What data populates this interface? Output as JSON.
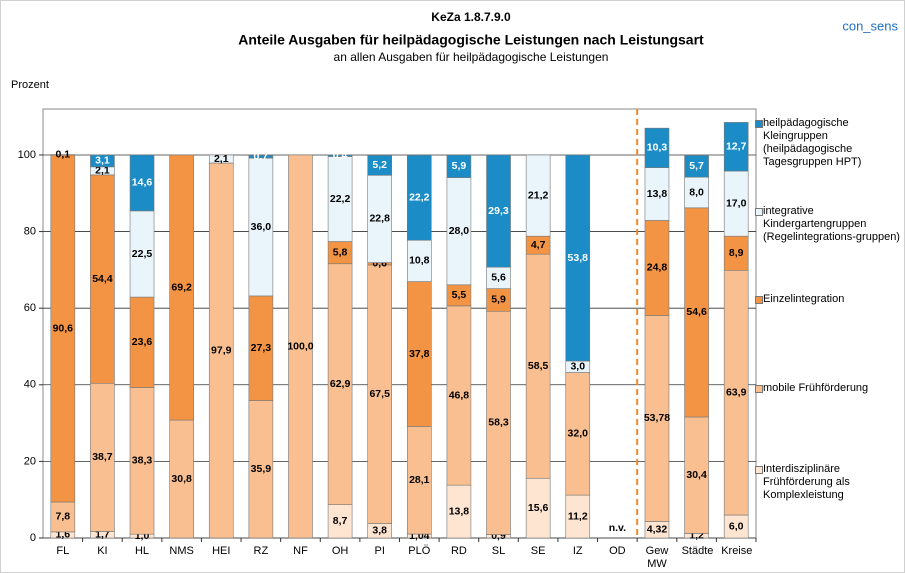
{
  "brand": "con_sens",
  "chart_data": {
    "type": "stacked_bar",
    "code": "KeZa 1.8.7.9.0",
    "title": "Anteile Ausgaben für heilpädagogische Leistungen nach Leistungsart",
    "subtitle": "an allen Ausgaben für heilpädagogische Leistungen",
    "y_label": "Prozent",
    "annotation": "n.v.",
    "categories": [
      "FL",
      "KI",
      "HL",
      "NMS",
      "HEI",
      "RZ",
      "NF",
      "OH",
      "PI",
      "PLÖ",
      "RD",
      "SL",
      "SE",
      "IZ",
      "OD",
      "Gew MW",
      "Städte",
      "Kreise"
    ],
    "ylim": [
      0,
      112
    ],
    "yticks": [
      0,
      20,
      40,
      60,
      80,
      100
    ],
    "grid": true,
    "separator_after": 14,
    "series": [
      {
        "name": "Interdisziplinäre Frühförderung als Komplexleistung",
        "color": "#fde5d2",
        "values": [
          1.6,
          1.7,
          1.0,
          null,
          null,
          null,
          null,
          8.7,
          3.8,
          1.04,
          13.8,
          0.9,
          15.6,
          11.2,
          null,
          4.32,
          1.2,
          6.0
        ],
        "value_labels": [
          "1,6",
          "1,7",
          "1,0",
          null,
          null,
          null,
          null,
          "8,7",
          "3,8",
          "1,04",
          "13,8",
          "0,9",
          "15,6",
          "11,2",
          null,
          "4,32",
          "1,2",
          "6,0"
        ]
      },
      {
        "name": "mobile Frühförderung",
        "color": "#f9bf90",
        "values": [
          7.8,
          38.7,
          38.3,
          30.8,
          97.9,
          35.9,
          100.0,
          62.9,
          67.5,
          28.1,
          46.8,
          58.3,
          58.5,
          32.0,
          null,
          53.78,
          30.4,
          63.9
        ],
        "value_labels": [
          "7,8",
          "38,7",
          "38,3",
          "30,8",
          "97,9",
          "35,9",
          "100,0",
          "62,9",
          "67,5",
          "28,1",
          "46,8",
          "58,3",
          "58,5",
          "32,0",
          null,
          "53,78",
          "30,4",
          "63,9"
        ]
      },
      {
        "name": "Einzelintegration",
        "color": "#f39444",
        "values": [
          90.6,
          54.4,
          23.6,
          69.2,
          null,
          27.3,
          null,
          5.8,
          0.6,
          37.8,
          5.5,
          5.9,
          4.7,
          null,
          null,
          24.8,
          54.6,
          8.9
        ],
        "value_labels": [
          "90,6",
          "54,4",
          "23,6",
          "69,2",
          null,
          "27,3",
          null,
          "5,8",
          "0,6",
          "37,8",
          "5,5",
          "5,9",
          "4,7",
          null,
          null,
          "24,8",
          "54,6",
          "8,9"
        ]
      },
      {
        "name": "integrative Kindergartengruppen (Regelintegrations-gruppen)",
        "color": "#e9f4fb",
        "values": [
          0.1,
          2.1,
          22.5,
          null,
          2.1,
          36.0,
          null,
          22.2,
          22.8,
          10.8,
          28.0,
          5.6,
          21.2,
          3.0,
          null,
          13.8,
          8.0,
          17.0
        ],
        "value_labels": [
          "0,1",
          "2,1",
          "22,5",
          null,
          "2,1",
          "36,0",
          null,
          "22,2",
          "22,8",
          "10,8",
          "28,0",
          "5,6",
          "21,2",
          "3,0",
          null,
          "13,8",
          "8,0",
          "17,0"
        ]
      },
      {
        "name": "heilpädagogische Kleingruppen (heilpädagogische Tagesgruppen HPT)",
        "color": "#1b8cc6",
        "values": [
          null,
          3.1,
          14.6,
          null,
          null,
          0.7,
          null,
          0.4,
          5.2,
          22.2,
          5.9,
          29.3,
          null,
          53.8,
          null,
          10.3,
          5.7,
          12.7
        ],
        "value_labels": [
          null,
          "3,1",
          "14,6",
          null,
          null,
          "0,7",
          null,
          "0,4",
          "5,2",
          "22,2",
          "5,9",
          "29,3",
          null,
          "53,8",
          null,
          "10,3",
          "5,7",
          "12,7"
        ]
      }
    ]
  }
}
